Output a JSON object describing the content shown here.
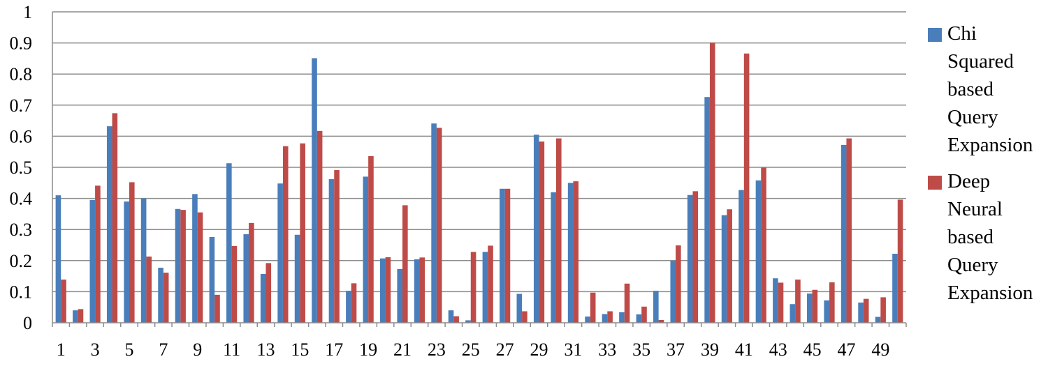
{
  "chart_data": {
    "type": "bar",
    "categories": [
      "1",
      "2",
      "3",
      "4",
      "5",
      "6",
      "7",
      "8",
      "9",
      "10",
      "11",
      "12",
      "13",
      "14",
      "15",
      "16",
      "17",
      "18",
      "19",
      "20",
      "21",
      "22",
      "23",
      "24",
      "25",
      "26",
      "27",
      "28",
      "29",
      "30",
      "31",
      "32",
      "33",
      "34",
      "35",
      "36",
      "37",
      "38",
      "39",
      "40",
      "41",
      "42",
      "43",
      "44",
      "45",
      "46",
      "47",
      "48",
      "49",
      "50"
    ],
    "x_tick_labels": [
      "1",
      "3",
      "5",
      "7",
      "9",
      "11",
      "13",
      "15",
      "17",
      "19",
      "21",
      "23",
      "25",
      "27",
      "29",
      "31",
      "33",
      "35",
      "37",
      "39",
      "41",
      "43",
      "45",
      "47",
      "49"
    ],
    "y_tick_labels": [
      "0",
      "0.1",
      "0.2",
      "0.3",
      "0.4",
      "0.5",
      "0.6",
      "0.7",
      "0.8",
      "0.9",
      "1"
    ],
    "ylim": [
      0,
      1
    ],
    "grid": true,
    "legend_position": "right",
    "series": [
      {
        "name": "Chi Squared based Query Expansion",
        "color": "#4a7ebb",
        "values": [
          0.41,
          0.04,
          0.395,
          0.632,
          0.39,
          0.4,
          0.177,
          0.366,
          0.414,
          0.276,
          0.513,
          0.285,
          0.157,
          0.448,
          0.283,
          0.851,
          0.462,
          0.103,
          0.47,
          0.207,
          0.173,
          0.204,
          0.641,
          0.04,
          0.008,
          0.228,
          0.431,
          0.093,
          0.605,
          0.42,
          0.45,
          0.02,
          0.028,
          0.034,
          0.027,
          0.103,
          0.199,
          0.411,
          0.726,
          0.346,
          0.427,
          0.458,
          0.143,
          0.06,
          0.094,
          0.072,
          0.572,
          0.065,
          0.019,
          0.222
        ]
      },
      {
        "name": "Deep Neural based Query Expansion",
        "color": "#be4b48",
        "values": [
          0.139,
          0.044,
          0.441,
          0.674,
          0.452,
          0.213,
          0.161,
          0.363,
          0.355,
          0.09,
          0.247,
          0.321,
          0.192,
          0.568,
          0.577,
          0.617,
          0.491,
          0.127,
          0.536,
          0.211,
          0.378,
          0.21,
          0.627,
          0.021,
          0.228,
          0.248,
          0.431,
          0.037,
          0.583,
          0.593,
          0.455,
          0.097,
          0.037,
          0.126,
          0.052,
          0.009,
          0.249,
          0.423,
          0.901,
          0.365,
          0.866,
          0.499,
          0.129,
          0.139,
          0.106,
          0.13,
          0.593,
          0.077,
          0.082,
          0.396
        ]
      }
    ]
  },
  "legend": {
    "series_1_label": "Chi Squared based Query Expansion",
    "series_2_label": "Deep Neural based Query Expansion"
  }
}
